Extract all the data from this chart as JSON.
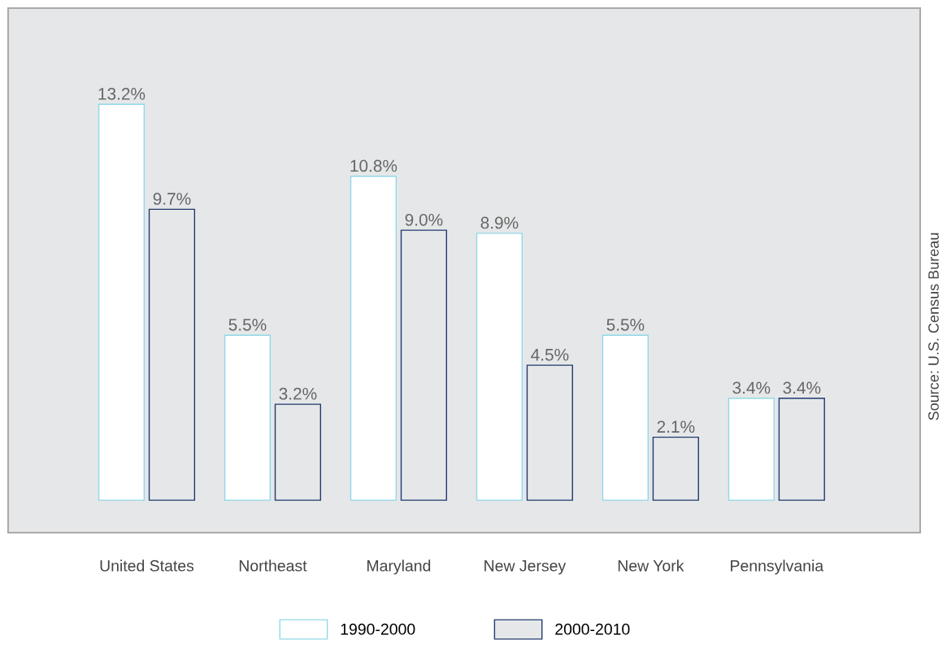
{
  "chart_data": {
    "type": "bar",
    "categories": [
      "United States",
      "Northeast",
      "Maryland",
      "New Jersey",
      "New York",
      "Pennsylvania"
    ],
    "series": [
      {
        "name": "1990-2000",
        "color": "#ffffff",
        "values": [
          13.2,
          5.5,
          10.8,
          8.9,
          5.5,
          3.4
        ],
        "value_labels": [
          "13.2%",
          "5.5%",
          "10.8%",
          "8.9%",
          "5.5%",
          "3.4%"
        ]
      },
      {
        "name": "2000-2010",
        "color": "#e6e7e9",
        "values": [
          9.7,
          3.2,
          9.0,
          4.5,
          2.1,
          3.4
        ],
        "value_labels": [
          "9.7%",
          "3.2%",
          "9.0%",
          "4.5%",
          "2.1%",
          "3.4%"
        ]
      }
    ],
    "annotations": [
      "Source: U.S. Census Bureau"
    ],
    "legend": "bottom",
    "grid": false
  }
}
